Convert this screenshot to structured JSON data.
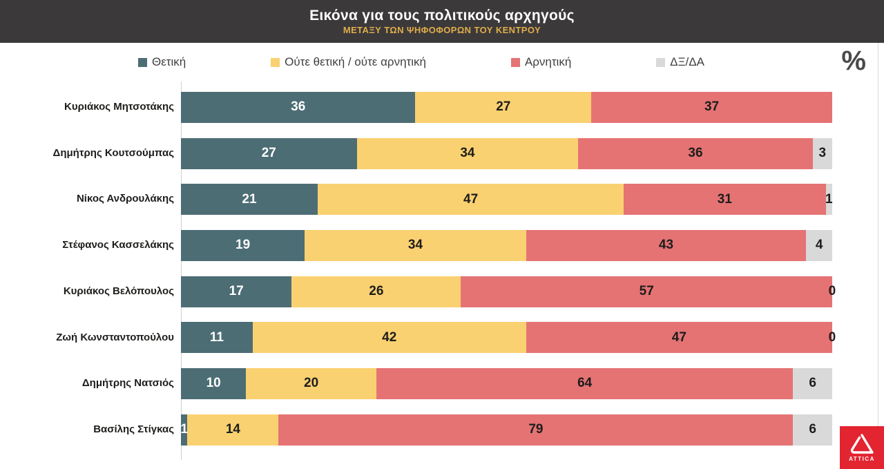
{
  "header": {
    "title": "Εικόνα για τους πολιτικούς αρχηγούς",
    "subtitle": "ΜΕΤΑΞΥ ΤΩΝ ΨΗΦΟΦΟΡΩΝ ΤΟΥ ΚΕΝΤΡΟΥ",
    "background": "#3c393a",
    "title_color": "#ffffff",
    "subtitle_color": "#dfae4b"
  },
  "unit_symbol": "%",
  "legend": {
    "position": "top",
    "items": [
      {
        "label": "Θετική",
        "color": "#4d6d75"
      },
      {
        "label": "Ούτε θετική / ούτε αρνητική",
        "color": "#fad171"
      },
      {
        "label": "Αρνητική",
        "color": "#e57374"
      },
      {
        "label": "ΔΞ/ΔΑ",
        "color": "#d9d9d9"
      }
    ]
  },
  "chart_data": {
    "type": "bar",
    "orientation": "horizontal-stacked",
    "unit": "%",
    "xlim": [
      0,
      100
    ],
    "grid": false,
    "legend_position": "top",
    "categories": [
      "Κυριάκος Μητσοτάκης",
      "Δημήτρης Κουτσούμπας",
      "Νίκος Ανδρουλάκης",
      "Στέφανος Κασσελάκης",
      "Κυριάκος Βελόπουλος",
      "Ζωή Κωνσταντοπούλου",
      "Δημήτρης Νατσιός",
      "Βασίλης Στίγκας"
    ],
    "series": [
      {
        "name": "Θετική",
        "color": "#4d6d75",
        "text_color": "#ffffff",
        "values": [
          36,
          27,
          21,
          19,
          17,
          11,
          10,
          1
        ]
      },
      {
        "name": "Ούτε θετική / ούτε αρνητική",
        "color": "#fad171",
        "text_color": "#1d1d1b",
        "values": [
          27,
          34,
          47,
          34,
          26,
          42,
          20,
          14
        ]
      },
      {
        "name": "Αρνητική",
        "color": "#e57374",
        "text_color": "#1d1d1b",
        "values": [
          37,
          36,
          31,
          43,
          57,
          47,
          64,
          79
        ]
      },
      {
        "name": "ΔΞ/ΔΑ",
        "color": "#d9d9d9",
        "text_color": "#1d1d1b",
        "values": [
          0,
          3,
          1,
          4,
          0,
          0,
          6,
          6
        ],
        "display_labels": [
          "",
          "3",
          "1",
          "4",
          "0",
          "0",
          "6",
          "6"
        ]
      }
    ]
  },
  "logo": {
    "text": "ATTICA",
    "background": "#e32431"
  }
}
